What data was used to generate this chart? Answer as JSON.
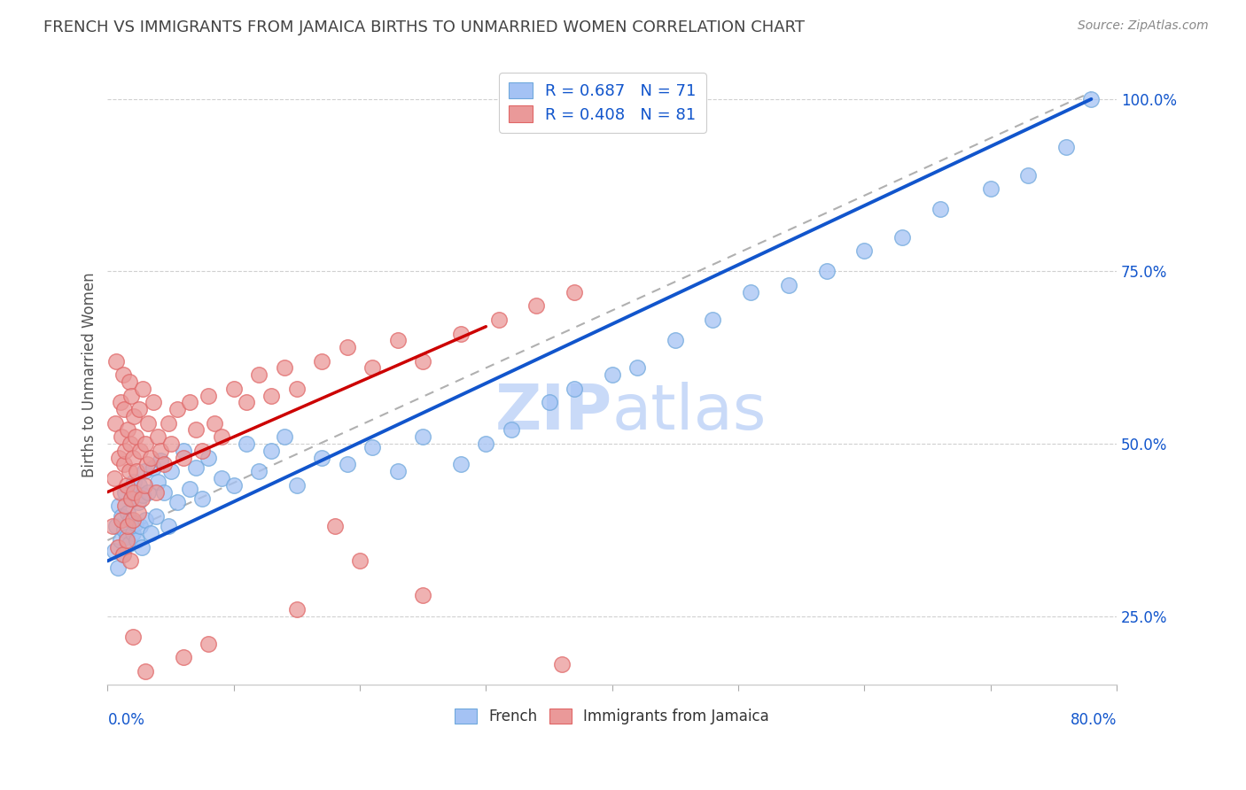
{
  "title": "FRENCH VS IMMIGRANTS FROM JAMAICA BIRTHS TO UNMARRIED WOMEN CORRELATION CHART",
  "source": "Source: ZipAtlas.com",
  "ylabel": "Births to Unmarried Women",
  "xlim": [
    0.0,
    0.8
  ],
  "ylim": [
    0.15,
    1.05
  ],
  "blue_color": "#a4c2f4",
  "pink_color": "#ea9999",
  "blue_scatter_edge": "#6fa8dc",
  "pink_scatter_edge": "#e06666",
  "blue_line_color": "#1155cc",
  "pink_line_color": "#cc0000",
  "gray_dash_color": "#b0b0b0",
  "title_color": "#434343",
  "axis_label_color": "#1155cc",
  "watermark_color": "#c9daf8",
  "legend_label_color": "#1155cc",
  "french_x": [
    0.005,
    0.007,
    0.008,
    0.009,
    0.01,
    0.011,
    0.012,
    0.013,
    0.014,
    0.015,
    0.016,
    0.017,
    0.018,
    0.019,
    0.02,
    0.021,
    0.022,
    0.023,
    0.024,
    0.025,
    0.026,
    0.027,
    0.028,
    0.029,
    0.03,
    0.032,
    0.034,
    0.036,
    0.038,
    0.04,
    0.042,
    0.045,
    0.048,
    0.05,
    0.055,
    0.06,
    0.065,
    0.07,
    0.075,
    0.08,
    0.09,
    0.1,
    0.11,
    0.12,
    0.13,
    0.14,
    0.15,
    0.17,
    0.19,
    0.21,
    0.23,
    0.25,
    0.28,
    0.3,
    0.32,
    0.35,
    0.37,
    0.4,
    0.42,
    0.45,
    0.48,
    0.51,
    0.54,
    0.57,
    0.6,
    0.63,
    0.66,
    0.7,
    0.73,
    0.76,
    0.78
  ],
  "french_y": [
    0.345,
    0.38,
    0.32,
    0.41,
    0.36,
    0.395,
    0.34,
    0.375,
    0.43,
    0.365,
    0.4,
    0.355,
    0.39,
    0.42,
    0.37,
    0.445,
    0.385,
    0.36,
    0.415,
    0.44,
    0.38,
    0.35,
    0.425,
    0.46,
    0.39,
    0.43,
    0.37,
    0.465,
    0.395,
    0.445,
    0.475,
    0.43,
    0.38,
    0.46,
    0.415,
    0.49,
    0.435,
    0.465,
    0.42,
    0.48,
    0.45,
    0.44,
    0.5,
    0.46,
    0.49,
    0.51,
    0.44,
    0.48,
    0.47,
    0.495,
    0.46,
    0.51,
    0.47,
    0.5,
    0.52,
    0.56,
    0.58,
    0.6,
    0.61,
    0.65,
    0.68,
    0.72,
    0.73,
    0.75,
    0.78,
    0.8,
    0.84,
    0.87,
    0.89,
    0.93,
    1.0
  ],
  "jamaica_x": [
    0.004,
    0.005,
    0.006,
    0.007,
    0.008,
    0.009,
    0.01,
    0.01,
    0.011,
    0.011,
    0.012,
    0.012,
    0.013,
    0.013,
    0.014,
    0.014,
    0.015,
    0.015,
    0.016,
    0.016,
    0.017,
    0.017,
    0.018,
    0.018,
    0.019,
    0.019,
    0.02,
    0.02,
    0.021,
    0.021,
    0.022,
    0.023,
    0.024,
    0.025,
    0.026,
    0.027,
    0.028,
    0.029,
    0.03,
    0.031,
    0.032,
    0.034,
    0.036,
    0.038,
    0.04,
    0.042,
    0.045,
    0.048,
    0.05,
    0.055,
    0.06,
    0.065,
    0.07,
    0.075,
    0.08,
    0.085,
    0.09,
    0.1,
    0.11,
    0.12,
    0.13,
    0.14,
    0.15,
    0.17,
    0.19,
    0.21,
    0.23,
    0.25,
    0.28,
    0.31,
    0.34,
    0.37,
    0.25,
    0.2,
    0.18,
    0.15,
    0.08,
    0.06,
    0.03,
    0.02,
    0.36
  ],
  "jamaica_y": [
    0.38,
    0.45,
    0.53,
    0.62,
    0.35,
    0.48,
    0.56,
    0.43,
    0.39,
    0.51,
    0.6,
    0.34,
    0.47,
    0.55,
    0.41,
    0.49,
    0.36,
    0.44,
    0.52,
    0.38,
    0.46,
    0.59,
    0.33,
    0.5,
    0.42,
    0.57,
    0.39,
    0.48,
    0.54,
    0.43,
    0.51,
    0.46,
    0.4,
    0.55,
    0.49,
    0.42,
    0.58,
    0.44,
    0.5,
    0.47,
    0.53,
    0.48,
    0.56,
    0.43,
    0.51,
    0.49,
    0.47,
    0.53,
    0.5,
    0.55,
    0.48,
    0.56,
    0.52,
    0.49,
    0.57,
    0.53,
    0.51,
    0.58,
    0.56,
    0.6,
    0.57,
    0.61,
    0.58,
    0.62,
    0.64,
    0.61,
    0.65,
    0.62,
    0.66,
    0.68,
    0.7,
    0.72,
    0.28,
    0.33,
    0.38,
    0.26,
    0.21,
    0.19,
    0.17,
    0.22,
    0.18
  ],
  "french_line_x0": 0.0,
  "french_line_y0": 0.33,
  "french_line_x1": 0.78,
  "french_line_y1": 1.0,
  "pink_line_x0": 0.0,
  "pink_line_y0": 0.43,
  "pink_line_x1": 0.3,
  "pink_line_y1": 0.67,
  "gray_line_x0": 0.0,
  "gray_line_y0": 0.36,
  "gray_line_x1": 0.78,
  "gray_line_y1": 1.01
}
